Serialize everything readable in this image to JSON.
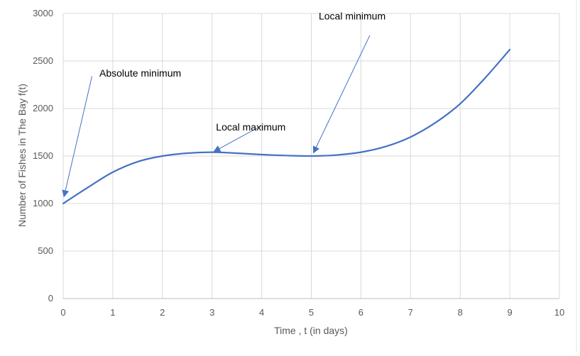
{
  "colors": {
    "series": "#4472c4",
    "gridline": "#d9d9d9",
    "tick_text": "#595959",
    "annotation_text": "#000000"
  },
  "chart_data": {
    "type": "line",
    "title": "",
    "xlabel": "Time , t (in days)",
    "ylabel": "Number of Fishes in The Bay f(t)",
    "xlim": [
      0,
      10
    ],
    "ylim": [
      0,
      3000
    ],
    "x_ticks": [
      0,
      1,
      2,
      3,
      4,
      5,
      6,
      7,
      8,
      9,
      10
    ],
    "y_ticks": [
      0,
      500,
      1000,
      1500,
      2000,
      2500,
      3000
    ],
    "grid": true,
    "legend": "none",
    "smooth": true,
    "series": [
      {
        "x": [
          0,
          0.5,
          1,
          1.5,
          2,
          2.5,
          3,
          3.5,
          4,
          4.5,
          5,
          5.5,
          6,
          6.5,
          7,
          7.5,
          8,
          8.5,
          9
        ],
        "values": [
          1000,
          1170,
          1330,
          1440,
          1500,
          1530,
          1540,
          1530,
          1515,
          1505,
          1500,
          1510,
          1540,
          1600,
          1700,
          1850,
          2050,
          2320,
          2620
        ]
      }
    ],
    "annotations": [
      {
        "text": "Absolute minimum",
        "text_at": [
          0.73,
          2335
        ],
        "arrow_from": [
          0.58,
          2340
        ],
        "arrow_to": [
          0.02,
          1080
        ]
      },
      {
        "text": "Local maximum",
        "text_at": [
          3.08,
          1770
        ],
        "arrow_from": [
          4.0,
          1820
        ],
        "arrow_to": [
          3.05,
          1550
        ]
      },
      {
        "text": "Local minimum",
        "text_at": [
          5.15,
          2935
        ],
        "arrow_from": [
          6.18,
          2770
        ],
        "arrow_to": [
          5.05,
          1540
        ]
      }
    ]
  }
}
